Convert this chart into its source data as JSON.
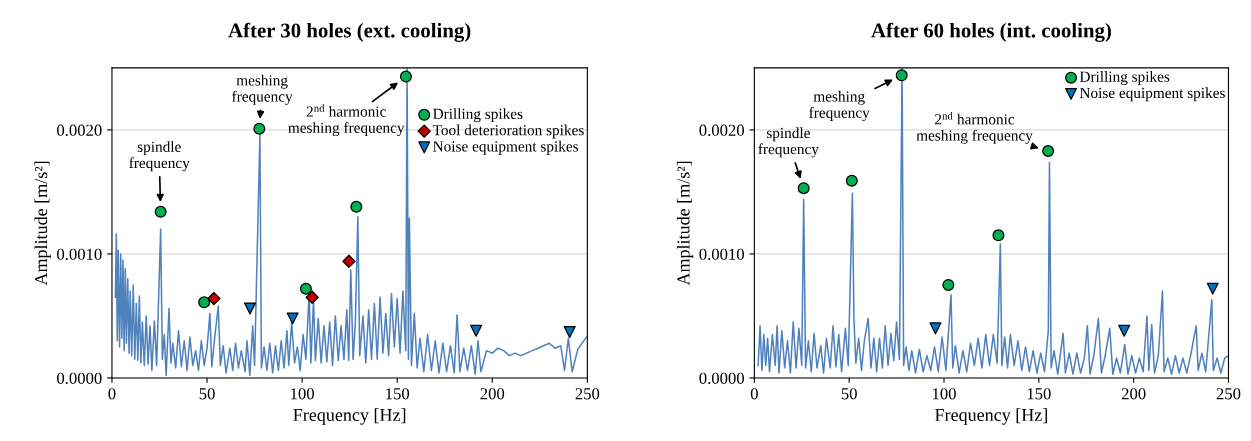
{
  "chart_data": [
    {
      "type": "line",
      "title": "After 30 holes (ext. cooling)",
      "xlabel": "Frequency [Hz]",
      "ylabel": "Amplitude [m/s²]",
      "xlim": [
        0,
        250
      ],
      "xticks": [
        0,
        50,
        100,
        150,
        200,
        250
      ],
      "ylim": [
        0,
        0.0025
      ],
      "yticks": [
        {
          "value": 0,
          "label": "0.0000"
        },
        {
          "value": 0.001,
          "label": "0.0010"
        },
        {
          "value": 0.002,
          "label": "0.0020"
        }
      ],
      "grid": "y",
      "legend": "top right",
      "annotations": [
        {
          "text": "spindle\nfrequency",
          "x": 25.6,
          "y": 0.00134
        },
        {
          "text": "meshing\nfrequency",
          "x": 77.5,
          "y": 0.00201
        },
        {
          "text": "2$^{nd}$ harmonic\nmeshing frequency",
          "x": 154.6,
          "y": 0.00243
        }
      ],
      "series": [
        {
          "color": "#4f81bd",
          "marker": "none",
          "x": [
            1.8,
            2.3,
            2.8,
            3.3,
            4,
            4.6,
            5.2,
            5.8,
            6.4,
            7,
            7.6,
            8.3,
            9,
            9.6,
            10.4,
            11.2,
            12,
            12.8,
            13.6,
            14.4,
            15.2,
            16,
            17,
            18,
            19,
            20,
            21,
            22.3,
            23.5,
            25.6,
            26.5,
            27.5,
            28.5,
            30,
            31,
            32,
            33.5,
            35,
            36.5,
            38,
            39.5,
            41,
            42.5,
            44,
            45.5,
            47,
            48.5,
            50,
            51.5,
            52.5,
            54,
            55.9,
            57,
            58.5,
            60,
            62,
            63.5,
            65,
            66.5,
            68,
            70,
            71,
            72.5,
            74,
            75,
            77.8,
            78.6,
            80,
            81.5,
            83,
            84.5,
            86,
            87.5,
            89,
            90.5,
            92,
            93,
            94.5,
            96,
            97.5,
            99,
            100.5,
            102,
            103.7,
            104.6,
            106,
            107,
            108.5,
            110,
            111.5,
            113,
            114.5,
            116,
            117.5,
            119,
            120.5,
            122,
            123.5,
            124.5,
            125.6,
            126.8,
            128,
            129.3,
            130.3,
            132,
            133.5,
            135,
            136.5,
            138,
            139.5,
            141,
            142.5,
            144,
            145.5,
            147,
            148.5,
            150,
            151.5,
            153,
            154.5,
            155.2,
            155.9,
            156.4,
            157.5,
            159,
            160.5,
            162,
            164,
            166,
            168,
            170,
            172,
            174,
            176,
            178,
            180,
            181.5,
            183,
            185,
            187,
            189,
            191,
            192.5,
            194,
            197,
            200,
            203,
            206,
            209,
            212,
            215,
            218,
            221,
            224,
            227,
            230,
            233,
            236,
            238,
            240,
            242,
            245,
            249.5
          ],
          "values": [
            0.00065,
            0.00116,
            0.0003,
            0.00103,
            0.00025,
            0.001,
            0.00032,
            0.00095,
            0.00022,
            0.00088,
            0.00028,
            0.0008,
            0.0002,
            0.0007,
            0.00018,
            0.00075,
            0.00015,
            0.0006,
            0.00014,
            0.00066,
            0.00012,
            0.00045,
            0.0001,
            0.0005,
            0.00011,
            0.00042,
            6e-05,
            0.00046,
            0.0001,
            0.0012,
            0.00015,
            0.00035,
            2e-05,
            0.00056,
            0.00012,
            0.00028,
            8e-05,
            0.00038,
            9e-05,
            0.0003,
            6e-05,
            0.00033,
            0.0001,
            0.00022,
            6e-05,
            0.0003,
            0.0001,
            0.00024,
            0.00052,
            9e-05,
            0.00032,
            0.00058,
            0.0001,
            0.00026,
            4e-05,
            0.00024,
            6e-05,
            0.00028,
            8e-05,
            0.00022,
            5e-05,
            0.0003,
            2e-05,
            0.00042,
            0.0001,
            0.00196,
            8e-05,
            0.00025,
            6e-05,
            0.00028,
            4e-05,
            0.00026,
            6e-05,
            0.0003,
            8e-05,
            0.00038,
            0.0001,
            0.00045,
            0.00012,
            0.00025,
            6e-05,
            0.00035,
            0.00015,
            0.00069,
            0.00012,
            0.00063,
            0.00014,
            0.00048,
            0.00012,
            0.00042,
            0.00013,
            0.00045,
            0.0001,
            0.0005,
            0.00014,
            0.00042,
            0.00015,
            0.00055,
            0.00014,
            0.00087,
            0.00015,
            0.00045,
            0.0013,
            0.00018,
            0.0005,
            0.00012,
            0.00055,
            0.00015,
            0.0006,
            0.00015,
            0.00065,
            0.0002,
            0.00052,
            0.00018,
            0.00068,
            0.00025,
            0.00064,
            0.0002,
            0.0007,
            0.00022,
            0.0025,
            0.00015,
            0.00129,
            0.0001,
            0.00052,
            8e-05,
            0.00032,
            5e-05,
            0.00035,
            6e-05,
            0.0003,
            4e-05,
            0.00028,
            5e-05,
            0.00026,
            4e-05,
            0.00051,
            5e-05,
            0.00024,
            6e-05,
            0.00026,
            3e-05,
            0.0003,
            5e-05,
            0.00022,
            0.0002,
            0.00024,
            0.00022,
            0.00018,
            0.0002,
            0.00018,
            0.0002,
            0.00022,
            0.00024,
            0.00026,
            0.00028,
            0.00024,
            0.00026,
            6e-05,
            0.00032,
            5e-05,
            0.00023,
            0.00033
          ]
        },
        {
          "type": "scatter",
          "name": "Drilling spikes",
          "color": "#00b050",
          "marker": "circle",
          "x": [
            25.6,
            48.5,
            77.5,
            102,
            128.5,
            154.6
          ],
          "values": [
            0.00134,
            0.00061,
            0.00201,
            0.00072,
            0.00138,
            0.00243
          ]
        },
        {
          "type": "scatter",
          "name": "Tool deterioration spikes",
          "color": "#c00000",
          "marker": "diamond",
          "x": [
            53.6,
            105.3,
            124.6
          ],
          "values": [
            0.00064,
            0.00065,
            0.00094
          ]
        },
        {
          "type": "scatter",
          "name": "Noise equipment spikes",
          "color": "#0070c0",
          "marker": "triangle",
          "x": [
            72.6,
            95,
            191.5,
            240.7
          ],
          "values": [
            0.00056,
            0.00048,
            0.00038,
            0.00037
          ]
        }
      ]
    },
    {
      "type": "line",
      "title": "After 60 holes (int. cooling)",
      "xlabel": "Frequency [Hz]",
      "ylabel": "Amplitude [m/s²]",
      "xlim": [
        0,
        250
      ],
      "xticks": [
        0,
        50,
        100,
        150,
        200,
        250
      ],
      "ylim": [
        0,
        0.0025
      ],
      "yticks": [
        {
          "value": 0,
          "label": "0.0000"
        },
        {
          "value": 0.001,
          "label": "0.0010"
        },
        {
          "value": 0.002,
          "label": "0.0020"
        }
      ],
      "grid": "y",
      "legend": "top right",
      "annotations": [
        {
          "text": "spindle\nfrequency",
          "x": 26,
          "y": 0.00153
        },
        {
          "text": "meshing\nfrequency",
          "x": 77.7,
          "y": 0.00244
        },
        {
          "text": "2$^{nd}$ harmonic\nmeshing frequency",
          "x": 154.9,
          "y": 0.00183
        }
      ],
      "series": [
        {
          "color": "#4f81bd",
          "marker": "none",
          "x": [
            2,
            3,
            4,
            5,
            6,
            7,
            8,
            9.5,
            11,
            12,
            13,
            14.5,
            16,
            17.5,
            19,
            20.5,
            22,
            23.5,
            25,
            26,
            27,
            28.5,
            30,
            31.5,
            33,
            35,
            36.5,
            38,
            40,
            41.5,
            43,
            44.5,
            46,
            48,
            49.5,
            51.7,
            52.5,
            53.5,
            55,
            56.5,
            58,
            60,
            61.5,
            63,
            64.5,
            66,
            67.5,
            69,
            70.5,
            72,
            73.5,
            75,
            76.5,
            77.9,
            78.7,
            80,
            81.5,
            83,
            85,
            87,
            89,
            91,
            93,
            95,
            97,
            99,
            101,
            103.7,
            104.6,
            106,
            108,
            110,
            112,
            114,
            116,
            118,
            120,
            122,
            124,
            126,
            128,
            129.7,
            130.5,
            132,
            133.5,
            135,
            137,
            139,
            141,
            143,
            145,
            147,
            149,
            151,
            153,
            155,
            155.6,
            156.5,
            158,
            160,
            162.8,
            164,
            166,
            168,
            170,
            172,
            174,
            175.6,
            177,
            179,
            181.4,
            183,
            185,
            187.4,
            189,
            191,
            193,
            195.3,
            197,
            199,
            201,
            203,
            205,
            207,
            208,
            209.5,
            211,
            213,
            215.2,
            216,
            218,
            220,
            222,
            224,
            226,
            228,
            230,
            233,
            234,
            236,
            238,
            241.2,
            242,
            244,
            246,
            248,
            250
          ],
          "values": [
            0.0001,
            0.00042,
            6e-05,
            0.00035,
            0.0001,
            0.00032,
            5e-05,
            0.00035,
            0.0001,
            0.00042,
            4e-05,
            0.00038,
            8e-05,
            0.0003,
            4e-05,
            0.00045,
            8e-05,
            0.0004,
            0.0001,
            0.00144,
            8e-05,
            0.0003,
            5e-05,
            0.00036,
            8e-05,
            0.00026,
            4e-05,
            0.00032,
            8e-05,
            0.00042,
            9e-05,
            0.00035,
            5e-05,
            0.0004,
            0.0001,
            0.00149,
            0.00048,
            0.00012,
            0.00032,
            6e-05,
            0.0003,
            0.00048,
            8e-05,
            0.00032,
            5e-05,
            0.00032,
            8e-05,
            0.00042,
            0.0001,
            0.00036,
            0.00014,
            0.00045,
            0.00015,
            0.0025,
            0.0001,
            0.00025,
            6e-05,
            0.00022,
            4e-05,
            0.00023,
            5e-05,
            0.00018,
            6e-05,
            0.00025,
            5e-05,
            0.00033,
            6e-05,
            0.00067,
            8e-05,
            0.00026,
            4e-05,
            0.00022,
            5e-05,
            0.00028,
            0.0001,
            0.00032,
            8e-05,
            0.00035,
            0.0001,
            0.00035,
            0.00012,
            0.00108,
            0.0001,
            0.00033,
            8e-05,
            0.00035,
            0.0001,
            0.0003,
            6e-05,
            0.00025,
            5e-05,
            0.00022,
            4e-05,
            0.0002,
            5e-05,
            0.00038,
            0.00174,
            8e-05,
            0.00022,
            3e-05,
            0.00036,
            4e-05,
            0.0002,
            3e-05,
            0.0002,
            4e-05,
            0.00016,
            0.00042,
            3e-05,
            0.00018,
            0.00048,
            4e-05,
            0.00018,
            0.0004,
            3e-05,
            0.00016,
            4e-05,
            0.00027,
            3e-05,
            0.00018,
            4e-05,
            0.00016,
            5e-05,
            0.0005,
            6e-05,
            0.00043,
            4e-05,
            0.00018,
            0.0007,
            5e-05,
            0.00016,
            3e-05,
            0.00018,
            4e-05,
            0.00016,
            4e-05,
            0.00018,
            0.00042,
            6e-05,
            0.0002,
            5e-05,
            0.00063,
            6e-05,
            0.00016,
            4e-05,
            0.00016,
            0.00018
          ]
        },
        {
          "type": "scatter",
          "name": "Drilling spikes",
          "color": "#00b050",
          "marker": "circle",
          "x": [
            26,
            51.4,
            77.7,
            102.3,
            128.7,
            154.9
          ],
          "values": [
            0.00153,
            0.00159,
            0.00244,
            0.00075,
            0.00115,
            0.00183
          ]
        },
        {
          "type": "scatter",
          "name": "Noise equipment spikes",
          "color": "#0070c0",
          "marker": "triangle",
          "x": [
            95.5,
            195,
            241.7
          ],
          "values": [
            0.0004,
            0.00038,
            0.00072
          ]
        }
      ]
    }
  ]
}
